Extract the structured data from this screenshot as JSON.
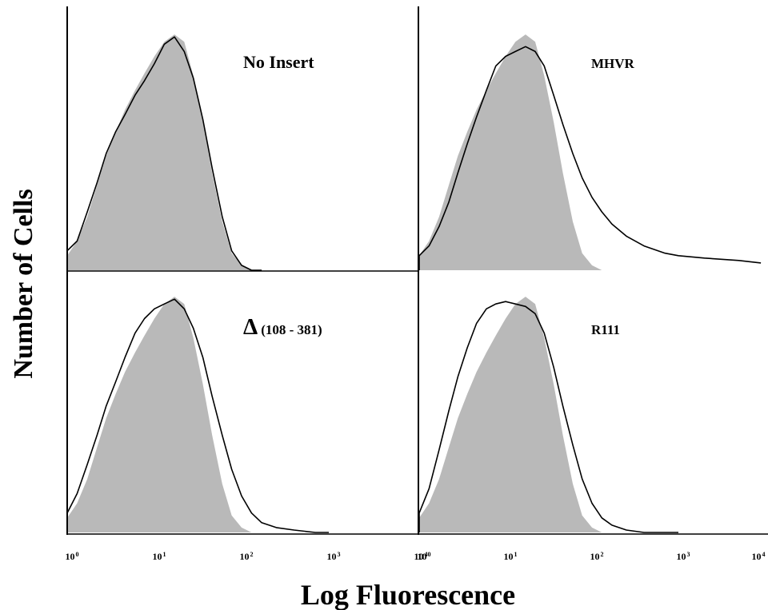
{
  "chart_data": {
    "type": "area",
    "ylabel": "Number of Cells",
    "xlabel": "Log Fluorescence",
    "x_scale": "log",
    "xlim": [
      1,
      10000
    ],
    "ylim": [
      0,
      100
    ],
    "x_ticks": [
      {
        "base": "10",
        "exp": "0",
        "value": 1
      },
      {
        "base": "10",
        "exp": "1",
        "value": 10
      },
      {
        "base": "10",
        "exp": "2",
        "value": 100
      },
      {
        "base": "10",
        "exp": "3",
        "value": 1000
      },
      {
        "base": "10",
        "exp": "4",
        "value": 10000
      }
    ],
    "shaded_series": {
      "x": [
        1,
        1.3,
        1.7,
        2.2,
        2.8,
        3.6,
        4.6,
        6,
        7.7,
        10,
        13,
        17,
        22,
        28,
        36,
        46,
        60,
        77,
        100,
        130,
        170
      ],
      "y": [
        6,
        12,
        22,
        35,
        47,
        57,
        66,
        74,
        81,
        88,
        94,
        97,
        94,
        80,
        61,
        40,
        20,
        7,
        2,
        0,
        0
      ]
    },
    "panels": [
      {
        "title": "No Insert",
        "outline": {
          "x": [
            1,
            1.3,
            1.7,
            2.2,
            2.8,
            3.6,
            4.6,
            6,
            7.7,
            10,
            13,
            17,
            22,
            28,
            36,
            46,
            60,
            77,
            100,
            130,
            170
          ],
          "y": [
            8,
            12,
            24,
            36,
            48,
            57,
            64,
            72,
            78,
            85,
            93,
            96,
            90,
            79,
            62,
            42,
            22,
            8,
            2,
            0,
            0
          ]
        }
      },
      {
        "title": "MHVR",
        "outline": {
          "x": [
            1,
            1.3,
            1.7,
            2.2,
            2.8,
            3.6,
            4.6,
            6,
            7.7,
            10,
            13,
            17,
            22,
            28,
            36,
            46,
            60,
            77,
            100,
            130,
            170,
            250,
            400,
            700,
            1000,
            2000,
            5000,
            9000
          ],
          "y": [
            6,
            10,
            18,
            28,
            40,
            52,
            63,
            74,
            84,
            88,
            90,
            92,
            90,
            84,
            72,
            60,
            48,
            38,
            30,
            24,
            19,
            14,
            10,
            7,
            6,
            5,
            4,
            3
          ]
        }
      },
      {
        "title": "(108 - 381)",
        "title_prefix": "Δ",
        "outline": {
          "x": [
            1,
            1.3,
            1.7,
            2.2,
            2.8,
            3.6,
            4.6,
            6,
            7.7,
            10,
            13,
            17,
            22,
            28,
            36,
            46,
            60,
            77,
            100,
            130,
            170,
            250,
            400,
            700,
            1000
          ],
          "y": [
            8,
            16,
            28,
            40,
            52,
            62,
            72,
            82,
            88,
            92,
            94,
            96,
            92,
            84,
            72,
            56,
            40,
            26,
            15,
            8,
            4,
            2,
            1,
            0,
            0
          ]
        }
      },
      {
        "title": "R111",
        "outline": {
          "x": [
            1,
            1.3,
            1.7,
            2.2,
            2.8,
            3.6,
            4.6,
            6,
            7.7,
            10,
            13,
            17,
            22,
            28,
            36,
            46,
            60,
            77,
            100,
            130,
            170,
            250,
            400,
            700,
            1000
          ],
          "y": [
            8,
            18,
            34,
            50,
            64,
            76,
            86,
            92,
            94,
            95,
            94,
            93,
            90,
            82,
            68,
            52,
            36,
            22,
            12,
            6,
            3,
            1,
            0,
            0,
            0
          ]
        }
      }
    ]
  }
}
